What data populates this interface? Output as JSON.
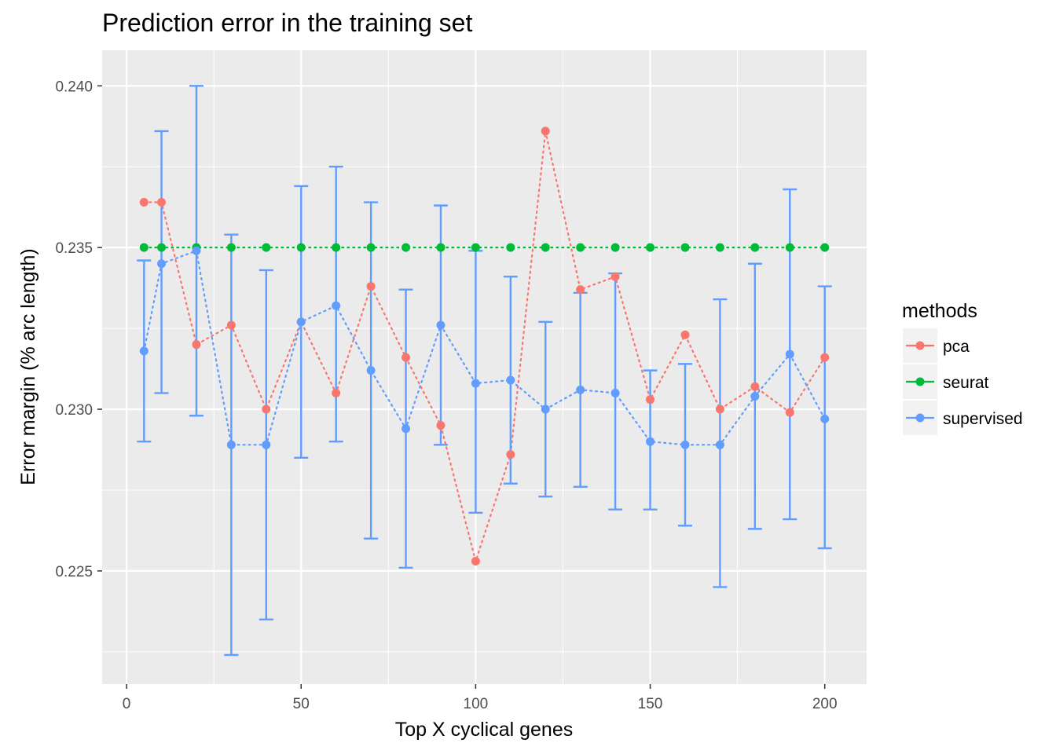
{
  "chart_data": {
    "type": "line",
    "title": "Prediction error in the training set",
    "xlabel": "Top X cyclical genes",
    "ylabel": "Error margin (% arc length)",
    "xlim": [
      -7,
      212
    ],
    "ylim": [
      0.2215,
      0.2411
    ],
    "x_ticks": [
      0,
      50,
      100,
      150,
      200
    ],
    "x_tick_labels": [
      "0",
      "50",
      "100",
      "150",
      "200"
    ],
    "y_ticks": [
      0.225,
      0.23,
      0.235,
      0.24
    ],
    "y_tick_labels": [
      "0.225",
      "0.230",
      "0.235",
      "0.240"
    ],
    "grid": true,
    "legend": {
      "title": "methods",
      "position": "right"
    },
    "series": [
      {
        "name": "pca",
        "color": "#F8766D",
        "x": [
          5,
          10,
          20,
          30,
          40,
          50,
          60,
          70,
          80,
          90,
          100,
          110,
          120,
          130,
          140,
          150,
          160,
          170,
          180,
          190,
          200
        ],
        "y": [
          0.2364,
          0.2364,
          0.232,
          0.2326,
          0.23,
          0.2327,
          0.2305,
          0.2338,
          0.2316,
          0.2295,
          0.2253,
          0.2286,
          0.2386,
          0.2337,
          0.2341,
          0.2303,
          0.2323,
          0.23,
          0.2307,
          0.2299,
          0.2316
        ]
      },
      {
        "name": "seurat",
        "color": "#00BA38",
        "x": [
          5,
          10,
          20,
          30,
          40,
          50,
          60,
          70,
          80,
          90,
          100,
          110,
          120,
          130,
          140,
          150,
          160,
          170,
          180,
          190,
          200
        ],
        "y": [
          0.235,
          0.235,
          0.235,
          0.235,
          0.235,
          0.235,
          0.235,
          0.235,
          0.235,
          0.235,
          0.235,
          0.235,
          0.235,
          0.235,
          0.235,
          0.235,
          0.235,
          0.235,
          0.235,
          0.235,
          0.235
        ]
      },
      {
        "name": "supervised",
        "color": "#619CFF",
        "x": [
          5,
          10,
          20,
          30,
          40,
          50,
          60,
          70,
          80,
          90,
          100,
          110,
          120,
          130,
          140,
          150,
          160,
          170,
          180,
          190,
          200
        ],
        "y": [
          0.2318,
          0.2345,
          0.2349,
          0.2289,
          0.2289,
          0.2327,
          0.2332,
          0.2312,
          0.2294,
          0.2326,
          0.2308,
          0.2309,
          0.23,
          0.2306,
          0.2305,
          0.229,
          0.2289,
          0.2289,
          0.2304,
          0.2317,
          0.2297
        ],
        "ymin": [
          0.229,
          0.2305,
          0.2298,
          0.2224,
          0.2235,
          0.2285,
          0.229,
          0.226,
          0.2251,
          0.2289,
          0.2268,
          0.2277,
          0.2273,
          0.2276,
          0.2269,
          0.2269,
          0.2264,
          0.2245,
          0.2263,
          0.2266,
          0.2257
        ],
        "ymax": [
          0.2346,
          0.2386,
          0.24,
          0.2354,
          0.2343,
          0.2369,
          0.2375,
          0.2364,
          0.2337,
          0.2363,
          0.2349,
          0.2341,
          0.2327,
          0.2336,
          0.2342,
          0.2312,
          0.2314,
          0.2334,
          0.2345,
          0.2368,
          0.2338
        ]
      }
    ]
  }
}
